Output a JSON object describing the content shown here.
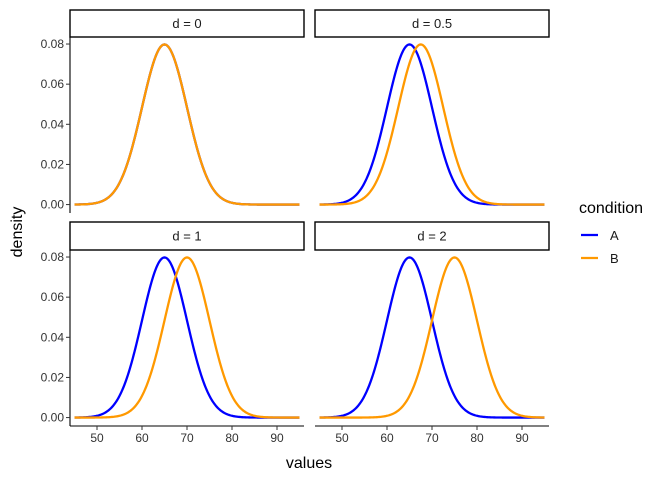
{
  "chart_data": {
    "type": "line",
    "xlabel": "values",
    "ylabel": "density",
    "xlim": [
      44,
      96
    ],
    "ylim": [
      -0.0042,
      0.0835
    ],
    "x_ticks": [
      50,
      60,
      70,
      80,
      90
    ],
    "x_tick_labels": [
      "50",
      "60",
      "70",
      "80",
      "90"
    ],
    "y_ticks": [
      0,
      0.02,
      0.04,
      0.06,
      0.08
    ],
    "y_tick_labels": [
      "0.00",
      "0.02",
      "0.04",
      "0.06",
      "0.08"
    ],
    "x_range": [
      45,
      95
    ],
    "distribution": "normal",
    "sd": 5,
    "grid": false,
    "legend": {
      "title": "condition",
      "placement": "right",
      "items": [
        {
          "label": "A",
          "color": "#0000FF"
        },
        {
          "label": "B",
          "color": "#FF9900"
        }
      ]
    },
    "panels": [
      {
        "label": "d = 0",
        "series": [
          {
            "name": "A",
            "mean": 65,
            "peak_density": 0.0798
          },
          {
            "name": "B",
            "mean": 65,
            "peak_density": 0.0798
          }
        ]
      },
      {
        "label": "d = 0.5",
        "series": [
          {
            "name": "A",
            "mean": 65,
            "peak_density": 0.0798
          },
          {
            "name": "B",
            "mean": 67.5,
            "peak_density": 0.0798
          }
        ]
      },
      {
        "label": "d = 1",
        "series": [
          {
            "name": "A",
            "mean": 65,
            "peak_density": 0.0798
          },
          {
            "name": "B",
            "mean": 70,
            "peak_density": 0.0798
          }
        ]
      },
      {
        "label": "d = 2",
        "series": [
          {
            "name": "A",
            "mean": 65,
            "peak_density": 0.0798
          },
          {
            "name": "B",
            "mean": 75,
            "peak_density": 0.0798
          }
        ]
      }
    ]
  }
}
